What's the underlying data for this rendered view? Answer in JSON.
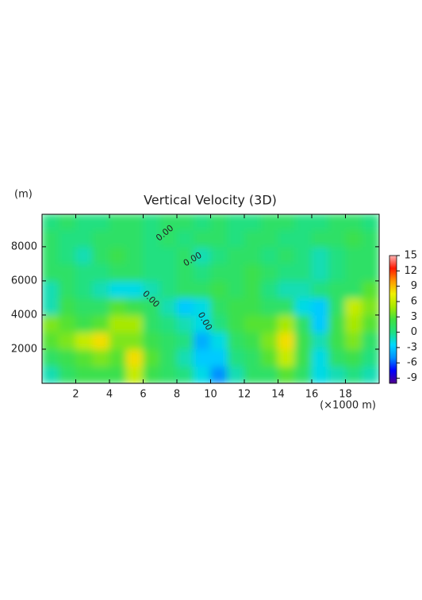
{
  "chart_data": {
    "type": "heatmap",
    "title": "Vertical Velocity (3D)",
    "y_label": "(m)",
    "x_label": "(×1000 m)",
    "xlim": [
      0,
      20
    ],
    "xticks": [
      2,
      4,
      6,
      8,
      10,
      12,
      14,
      16,
      18
    ],
    "ylim": [
      0,
      9900
    ],
    "yticks": [
      2000,
      4000,
      6000,
      8000
    ],
    "x": [
      0.5,
      1.5,
      2.5,
      3.5,
      4.5,
      5.5,
      6.5,
      7.5,
      8.5,
      9.5,
      10.5,
      11.5,
      12.5,
      13.5,
      14.5,
      15.5,
      16.5,
      17.5,
      18.5,
      19.5
    ],
    "y": [
      500,
      1500,
      2500,
      3500,
      4500,
      5500,
      6500,
      7500,
      8500,
      9450
    ],
    "z": [
      [
        -1,
        1,
        2,
        2,
        2,
        6,
        2,
        1,
        0,
        -2,
        -5,
        -1,
        1,
        1,
        3,
        1,
        -2,
        -1,
        0,
        -1
      ],
      [
        1,
        2,
        3,
        4,
        3,
        8,
        3,
        1,
        -1,
        -3,
        -3,
        0,
        1,
        3,
        6,
        2,
        -2,
        1,
        2,
        0
      ],
      [
        3,
        4,
        6,
        8,
        4,
        4,
        2,
        1,
        0,
        -4,
        -2,
        1,
        2,
        4,
        8,
        2,
        -1,
        2,
        4,
        1
      ],
      [
        4,
        3,
        2,
        3,
        5,
        5,
        1,
        0,
        -1,
        -2,
        0,
        2,
        3,
        3,
        5,
        1,
        -3,
        2,
        5,
        3
      ],
      [
        -1,
        2,
        1,
        1,
        3,
        2,
        1,
        -1,
        -3,
        -2,
        1,
        2,
        2,
        1,
        1,
        -2,
        -3,
        1,
        6,
        4
      ],
      [
        -1,
        1,
        0,
        -1,
        -2,
        -2,
        -1,
        0,
        1,
        1,
        2,
        1,
        2,
        0,
        -1,
        -1,
        0,
        1,
        1,
        3
      ],
      [
        1,
        1,
        0,
        0,
        1,
        1,
        0,
        0,
        1,
        0,
        1,
        1,
        2,
        1,
        0,
        0,
        -1,
        0,
        1,
        1
      ],
      [
        1,
        0,
        -1,
        1,
        2,
        1,
        0,
        0,
        1,
        -1,
        0,
        1,
        1,
        0,
        1,
        0,
        -1,
        0,
        1,
        1
      ],
      [
        1,
        0,
        0,
        1,
        1,
        1,
        0,
        1,
        0,
        1,
        1,
        0,
        1,
        1,
        0,
        0,
        1,
        1,
        2,
        1
      ],
      [
        0,
        1,
        0,
        0,
        1,
        1,
        0,
        1,
        1,
        0,
        1,
        0,
        0,
        1,
        1,
        0,
        0,
        1,
        1,
        0
      ]
    ],
    "zlim": [
      -10,
      15
    ],
    "zticks": [
      -9,
      -6,
      -3,
      0,
      3,
      6,
      9,
      12,
      15
    ],
    "colormap": [
      "#50008c",
      "#0000ff",
      "#0090ff",
      "#00d8ff",
      "#20e080",
      "#40e040",
      "#a8e800",
      "#f0f000",
      "#ff9800",
      "#ff1800",
      "#ffb4b4"
    ],
    "contour_label": "0.00"
  }
}
